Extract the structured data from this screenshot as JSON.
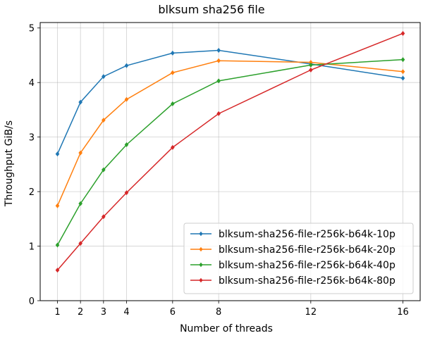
{
  "chart_data": {
    "type": "line",
    "title": "blksum sha256 file",
    "xlabel": "Number of threads",
    "ylabel": "Throughput GiB/s",
    "x": [
      1,
      2,
      3,
      4,
      6,
      8,
      12,
      16
    ],
    "x_ticks": [
      "1",
      "2",
      "3",
      "4",
      "6",
      "8",
      "12",
      "16"
    ],
    "y_ticks": [
      "0",
      "1",
      "2",
      "3",
      "4",
      "5"
    ],
    "xlim": [
      0.25,
      16.75
    ],
    "ylim": [
      0,
      5.1
    ],
    "grid": true,
    "legend_position": "lower-right",
    "series": [
      {
        "name": "blksum-sha256-file-r256k-b64k-10p",
        "color": "#1f77b4",
        "values": [
          2.69,
          3.64,
          4.11,
          4.31,
          4.54,
          4.59,
          4.34,
          4.08
        ]
      },
      {
        "name": "blksum-sha256-file-r256k-b64k-20p",
        "color": "#ff7f0e",
        "values": [
          1.74,
          2.71,
          3.31,
          3.69,
          4.18,
          4.4,
          4.37,
          4.2
        ]
      },
      {
        "name": "blksum-sha256-file-r256k-b64k-40p",
        "color": "#2ca02c",
        "values": [
          1.02,
          1.78,
          2.4,
          2.86,
          3.61,
          4.03,
          4.32,
          4.42
        ]
      },
      {
        "name": "blksum-sha256-file-r256k-b64k-80p",
        "color": "#d62728",
        "values": [
          0.56,
          1.05,
          1.54,
          1.98,
          2.81,
          3.43,
          4.23,
          4.9
        ]
      }
    ]
  }
}
